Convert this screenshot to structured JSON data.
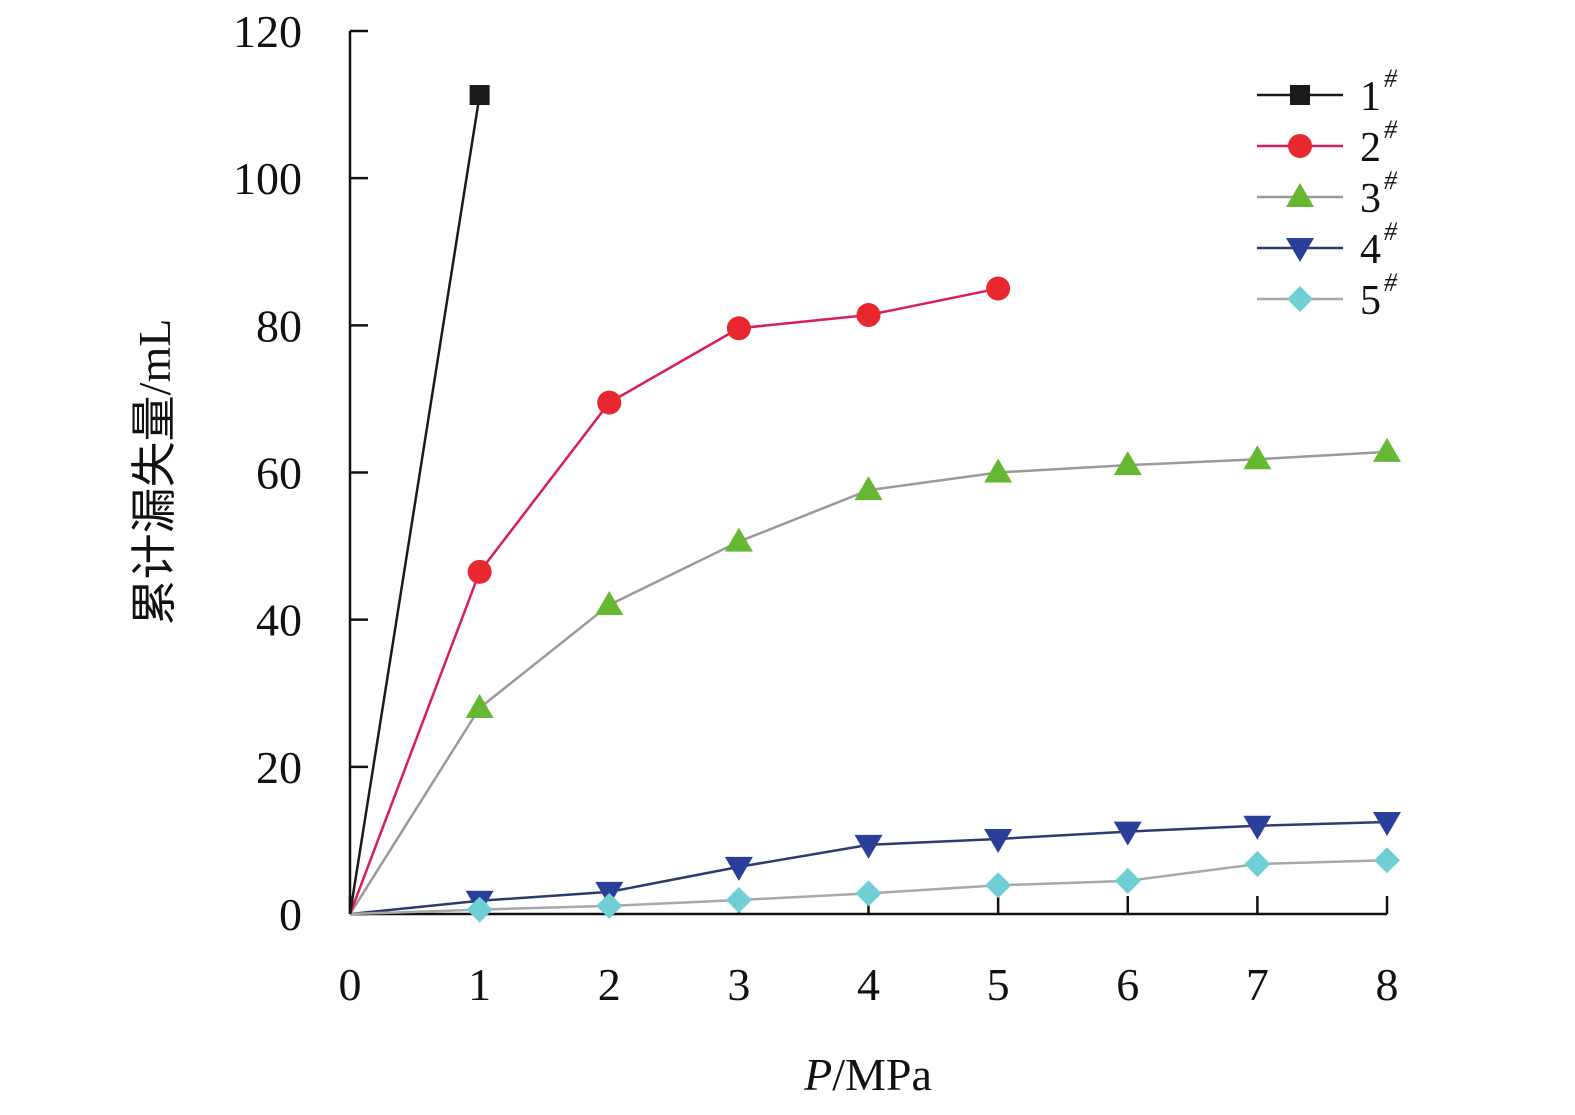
{
  "chart_data": {
    "type": "line",
    "xlabel_italic": "P",
    "xlabel_rest": "/MPa",
    "ylabel": "累计漏失量/mL",
    "xlim": [
      0,
      8
    ],
    "ylim": [
      0,
      120
    ],
    "xticks": [
      "0",
      "1",
      "2",
      "3",
      "4",
      "5",
      "6",
      "7",
      "8"
    ],
    "yticks": [
      "0",
      "20",
      "40",
      "60",
      "80",
      "100",
      "120"
    ],
    "grid": false,
    "legend_position": "top-right",
    "series": [
      {
        "name": "1",
        "sup": "#",
        "color": "#1a1a1a",
        "marker": "square",
        "x": [
          0,
          1
        ],
        "y": [
          0,
          111.3
        ]
      },
      {
        "name": "2",
        "sup": "#",
        "color": "#e8282e",
        "line_color": "#d81e56",
        "marker": "circle",
        "x": [
          0,
          1,
          2,
          3,
          4,
          5
        ],
        "y": [
          0,
          46.5,
          69.5,
          79.6,
          81.4,
          85.0
        ]
      },
      {
        "name": "3",
        "sup": "#",
        "color": "#66b832",
        "line_color": "#9a9a9a",
        "marker": "triangle-up",
        "x": [
          0,
          1,
          2,
          3,
          4,
          5,
          6,
          7,
          8
        ],
        "y": [
          0,
          28.0,
          42.0,
          50.6,
          57.6,
          60.0,
          61.0,
          61.8,
          62.8
        ]
      },
      {
        "name": "4",
        "sup": "#",
        "color": "#2a3f9a",
        "line_color": "#2f3a6e",
        "marker": "triangle-down",
        "x": [
          0,
          1,
          2,
          3,
          4,
          5,
          6,
          7,
          8
        ],
        "y": [
          0,
          1.8,
          3.0,
          6.4,
          9.4,
          10.2,
          11.2,
          12.0,
          12.5
        ]
      },
      {
        "name": "5",
        "sup": "#",
        "color": "#6fcfd4",
        "line_color": "#a8a8a8",
        "marker": "diamond",
        "x": [
          0,
          1,
          2,
          3,
          4,
          5,
          6,
          7,
          8
        ],
        "y": [
          0,
          0.6,
          1.1,
          1.9,
          2.8,
          3.9,
          4.5,
          6.8,
          7.3
        ]
      }
    ]
  }
}
